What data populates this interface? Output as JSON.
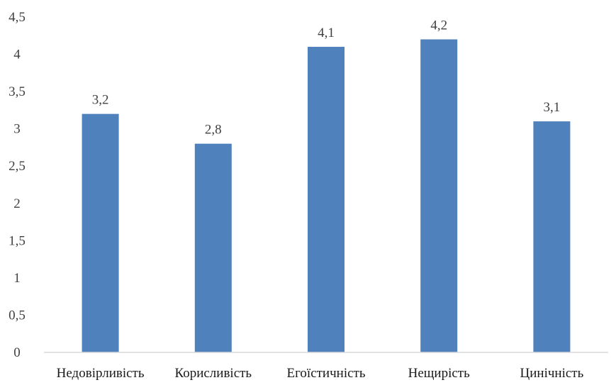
{
  "chart_data": {
    "type": "bar",
    "categories": [
      "Недовірливість",
      "Корисливість",
      "Егоїстичність",
      "Нещирість",
      "Цинічність"
    ],
    "values": [
      3.2,
      2.8,
      4.1,
      4.2,
      3.1
    ],
    "data_labels": [
      "3,2",
      "2,8",
      "4,1",
      "4,2",
      "3,1"
    ],
    "ylim": [
      0,
      4.5
    ],
    "yticks": [
      0,
      0.5,
      1,
      1.5,
      2,
      2.5,
      3,
      3.5,
      4,
      4.5
    ],
    "ytick_labels": [
      "0",
      "0,5",
      "1",
      "1,5",
      "2",
      "2,5",
      "3",
      "3,5",
      "4",
      "4,5"
    ],
    "title": "",
    "xlabel": "",
    "ylabel": "",
    "grid": false,
    "legend": "none",
    "bar_color": "#4f81bd"
  }
}
